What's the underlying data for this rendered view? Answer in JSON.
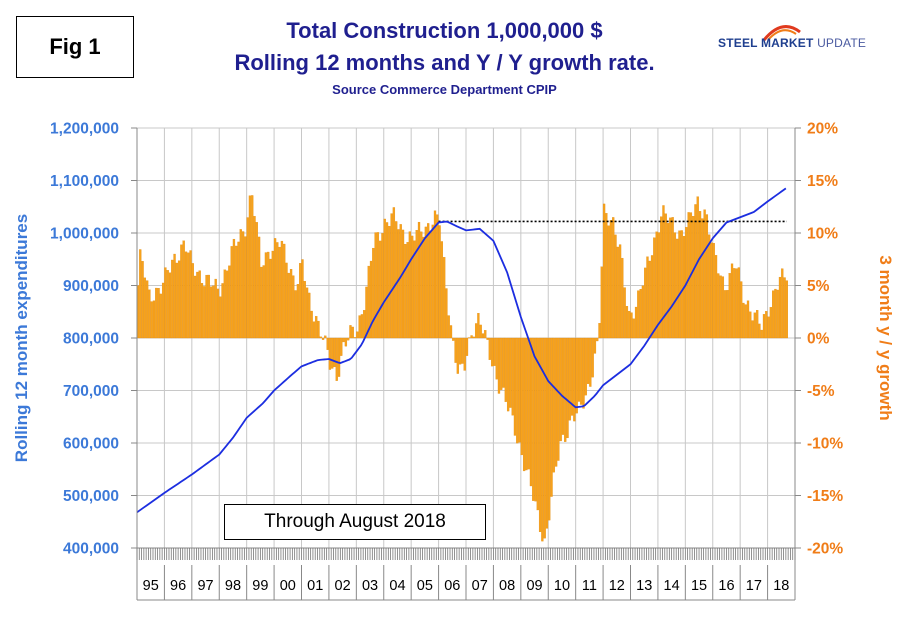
{
  "figure_label": "Fig 1",
  "title_line1": "Total Construction 1,000,000 $",
  "title_line2": "Rolling 12 months and Y / Y growth rate.",
  "subtitle": "Source Commerce Department CPIP",
  "logo": {
    "bold": "STEEL MARKET",
    "light": " UPDATE"
  },
  "note": "Through August 2018",
  "colors": {
    "bars": "#f7a21b",
    "bars_edge": "#e08a10",
    "line": "#1c2ee0",
    "left_axis": "#3c79d8",
    "right_axis": "#f07d18",
    "title": "#1f1f8f"
  },
  "chart_data": {
    "type": "bar+line",
    "x_labels": [
      "95",
      "96",
      "97",
      "98",
      "99",
      "00",
      "01",
      "02",
      "03",
      "04",
      "05",
      "06",
      "07",
      "08",
      "09",
      "10",
      "11",
      "12",
      "13",
      "14",
      "15",
      "16",
      "17",
      "18"
    ],
    "left_axis": {
      "label": "Rolling 12 month expenditures",
      "range": [
        400000,
        1200000
      ],
      "ticks": [
        "400,000",
        "500,000",
        "600,000",
        "700,000",
        "800,000",
        "900,000",
        "1,000,000",
        "1,100,000",
        "1,200,000"
      ]
    },
    "right_axis": {
      "label": "3 month y / y growth",
      "range": [
        -20,
        20
      ],
      "ticks": [
        "-20%",
        "-15%",
        "-10%",
        "-5%",
        "0%",
        "5%",
        "10%",
        "15%",
        "20%"
      ]
    },
    "reference_line": {
      "value": 1022000,
      "start_year": 2006.0,
      "end_year": 2018.7,
      "style": "dotted"
    },
    "bar_series": {
      "name": "3 month y / y growth (%)",
      "start_year": 1995.0,
      "end_year": 2018.667,
      "points_per_year": 12,
      "anchors": [
        [
          1995.0,
          5
        ],
        [
          1995.1,
          8
        ],
        [
          1995.4,
          4
        ],
        [
          1995.9,
          5
        ],
        [
          1996.3,
          7.5
        ],
        [
          1996.7,
          9
        ],
        [
          1996.95,
          7
        ],
        [
          1997.3,
          6
        ],
        [
          1997.7,
          5
        ],
        [
          1997.95,
          4.5
        ],
        [
          1998.4,
          8
        ],
        [
          1998.9,
          10.5
        ],
        [
          1999.15,
          14
        ],
        [
          1999.5,
          7
        ],
        [
          1999.8,
          8.5
        ],
        [
          2000.2,
          9
        ],
        [
          2000.5,
          7
        ],
        [
          2000.8,
          5
        ],
        [
          2001.0,
          7
        ],
        [
          2001.2,
          4
        ],
        [
          2001.5,
          2
        ],
        [
          2001.8,
          -0.5
        ],
        [
          2002.0,
          -2.5
        ],
        [
          2002.25,
          -3.5
        ],
        [
          2002.5,
          -1
        ],
        [
          2002.8,
          0.5
        ],
        [
          2003.0,
          1
        ],
        [
          2003.3,
          4
        ],
        [
          2003.6,
          9
        ],
        [
          2004.0,
          11
        ],
        [
          2004.3,
          11.5
        ],
        [
          2004.7,
          10
        ],
        [
          2005.0,
          9.5
        ],
        [
          2005.5,
          10.5
        ],
        [
          2005.8,
          11.5
        ],
        [
          2006.0,
          11
        ],
        [
          2006.2,
          6
        ],
        [
          2006.5,
          -0.5
        ],
        [
          2006.7,
          -3.5
        ],
        [
          2006.9,
          -3
        ],
        [
          2007.2,
          1
        ],
        [
          2007.45,
          2
        ],
        [
          2007.7,
          -0.5
        ],
        [
          2008.0,
          -3
        ],
        [
          2008.4,
          -6
        ],
        [
          2008.8,
          -9
        ],
        [
          2009.1,
          -12
        ],
        [
          2009.5,
          -16
        ],
        [
          2009.85,
          -19.5
        ],
        [
          2010.1,
          -15
        ],
        [
          2010.4,
          -10
        ],
        [
          2010.8,
          -8
        ],
        [
          2011.1,
          -7
        ],
        [
          2011.5,
          -4
        ],
        [
          2011.8,
          -0.5
        ],
        [
          2012.0,
          12
        ],
        [
          2012.3,
          11.5
        ],
        [
          2012.6,
          8
        ],
        [
          2012.9,
          2
        ],
        [
          2013.2,
          3.5
        ],
        [
          2013.5,
          6
        ],
        [
          2013.8,
          9
        ],
        [
          2014.1,
          12
        ],
        [
          2014.4,
          11
        ],
        [
          2014.8,
          10
        ],
        [
          2015.1,
          11
        ],
        [
          2015.4,
          13
        ],
        [
          2015.7,
          12
        ],
        [
          2016.0,
          8
        ],
        [
          2016.4,
          5
        ],
        [
          2016.8,
          7
        ],
        [
          2017.1,
          4
        ],
        [
          2017.5,
          2
        ],
        [
          2017.75,
          1
        ],
        [
          2018.0,
          3
        ],
        [
          2018.3,
          5
        ],
        [
          2018.667,
          6
        ]
      ]
    },
    "line_series": {
      "name": "Rolling 12 month expenditures",
      "anchors": [
        [
          1995.0,
          468000
        ],
        [
          1996.0,
          505000
        ],
        [
          1997.0,
          540000
        ],
        [
          1998.0,
          578000
        ],
        [
          1998.5,
          610000
        ],
        [
          1999.0,
          648000
        ],
        [
          1999.6,
          676000
        ],
        [
          2000.0,
          700000
        ],
        [
          2000.6,
          728000
        ],
        [
          2001.0,
          746000
        ],
        [
          2001.6,
          758000
        ],
        [
          2002.0,
          760000
        ],
        [
          2002.4,
          752000
        ],
        [
          2002.8,
          760000
        ],
        [
          2003.2,
          788000
        ],
        [
          2003.6,
          832000
        ],
        [
          2004.0,
          868000
        ],
        [
          2004.6,
          915000
        ],
        [
          2005.0,
          950000
        ],
        [
          2005.5,
          990000
        ],
        [
          2006.0,
          1020000
        ],
        [
          2006.3,
          1022000
        ],
        [
          2006.7,
          1012000
        ],
        [
          2007.0,
          1005000
        ],
        [
          2007.5,
          1008000
        ],
        [
          2008.0,
          985000
        ],
        [
          2008.5,
          925000
        ],
        [
          2009.0,
          840000
        ],
        [
          2009.5,
          765000
        ],
        [
          2010.0,
          718000
        ],
        [
          2010.5,
          690000
        ],
        [
          2011.0,
          668000
        ],
        [
          2011.3,
          670000
        ],
        [
          2011.7,
          690000
        ],
        [
          2012.0,
          710000
        ],
        [
          2012.5,
          730000
        ],
        [
          2013.0,
          750000
        ],
        [
          2013.5,
          785000
        ],
        [
          2014.0,
          825000
        ],
        [
          2014.5,
          860000
        ],
        [
          2015.0,
          900000
        ],
        [
          2015.5,
          950000
        ],
        [
          2016.0,
          990000
        ],
        [
          2016.5,
          1020000
        ],
        [
          2017.0,
          1030000
        ],
        [
          2017.5,
          1040000
        ],
        [
          2018.0,
          1060000
        ],
        [
          2018.667,
          1085000
        ]
      ]
    }
  }
}
